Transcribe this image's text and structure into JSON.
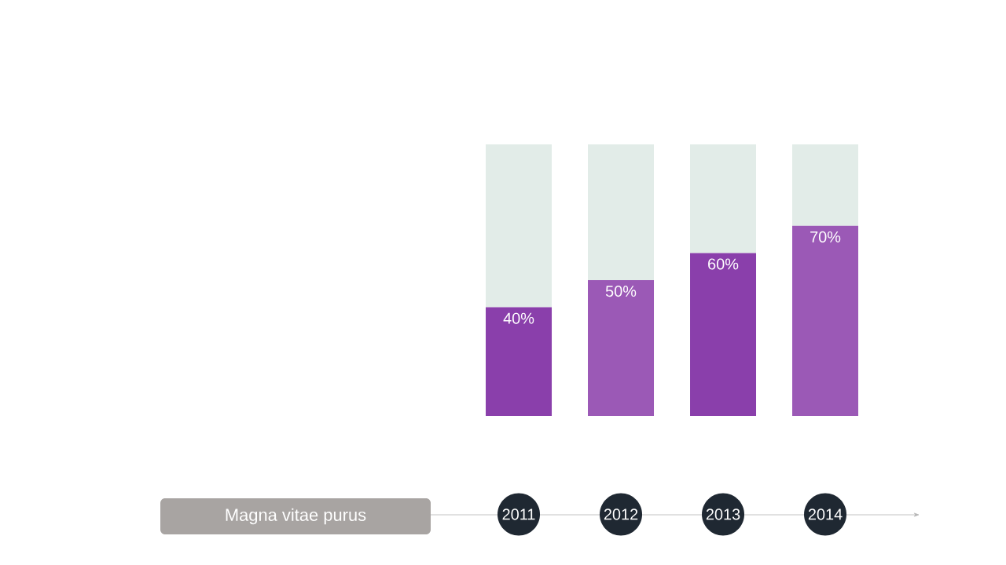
{
  "chart_data": {
    "type": "bar",
    "stacked": true,
    "categories": [
      "2011",
      "2012",
      "2013",
      "2014"
    ],
    "series": [
      {
        "colors": [
          "#8a3fab",
          "#9b59b6",
          "#8a3fab",
          "#9b59b6"
        ],
        "values": [
          40,
          50,
          60,
          70
        ],
        "value_labels": [
          "40%",
          "50%",
          "60%",
          "70%"
        ]
      },
      {
        "color": "#e2ece8",
        "values": [
          60,
          50,
          40,
          30
        ]
      }
    ],
    "ylim": [
      0,
      100
    ],
    "tick_labels": "x",
    "annotations": [
      "Magna vitae purus"
    ]
  }
}
